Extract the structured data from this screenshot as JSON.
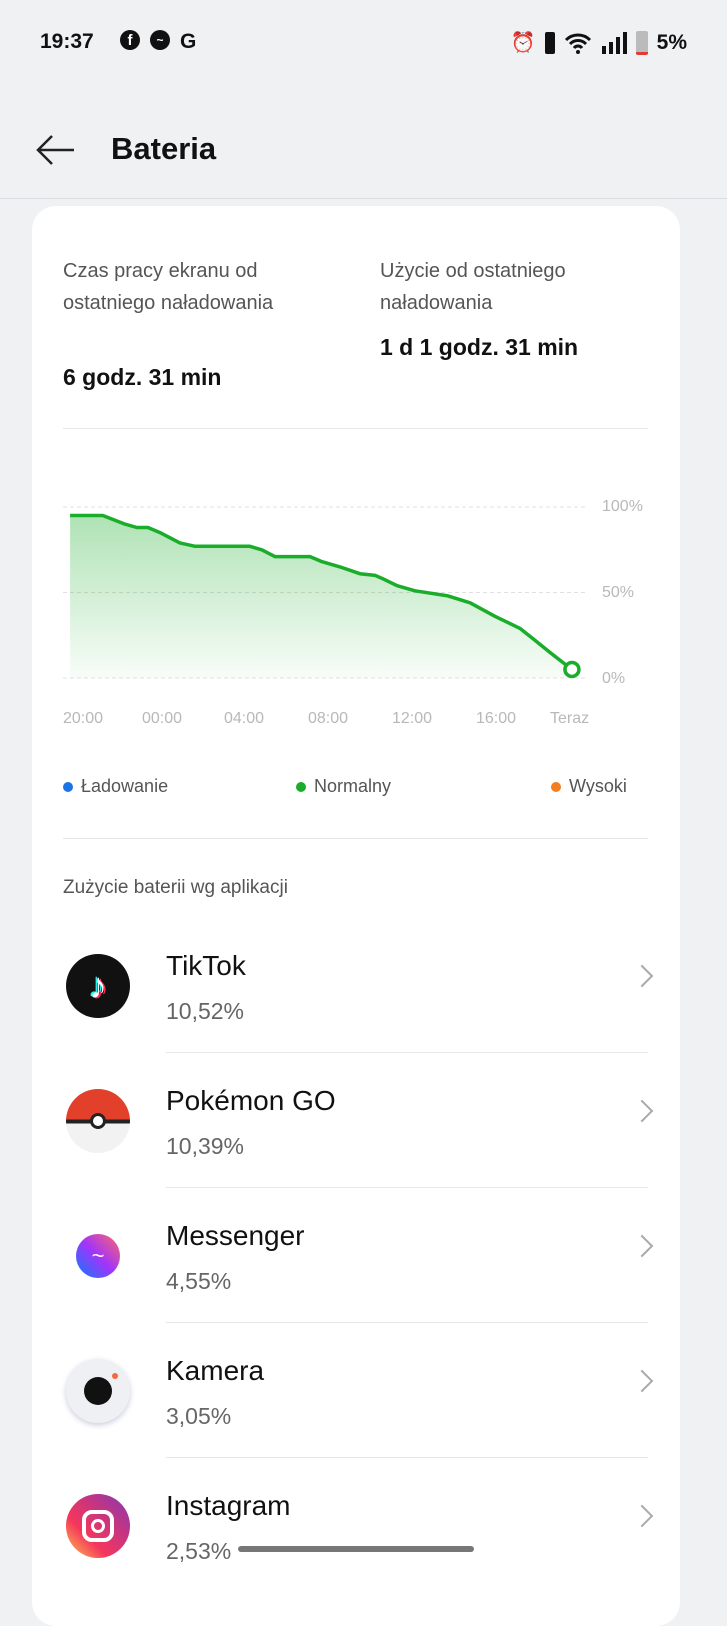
{
  "status_bar": {
    "time": "19:37",
    "battery": "5%",
    "notification_icons": [
      "facebook-icon",
      "messenger-icon",
      "google-icon"
    ],
    "system_icons": [
      "alarm-icon",
      "vibrate-icon",
      "wifi-icon",
      "signal-icon",
      "battery-icon"
    ]
  },
  "header": {
    "title": "Bateria"
  },
  "summary": {
    "screen_time_label": "Czas pracy ekranu od ostatniego naładowania",
    "screen_time_value": "6 godz. 31 min",
    "usage_label": "Użycie od ostatniego naładowania",
    "usage_value": "1 d 1 godz. 31 min"
  },
  "chart_data": {
    "type": "area",
    "x_ticks": [
      "20:00",
      "00:00",
      "04:00",
      "08:00",
      "12:00",
      "16:00",
      "Teraz"
    ],
    "y_ticks": [
      "100%",
      "50%",
      "0%"
    ],
    "ylim": [
      0,
      100
    ],
    "grid": true,
    "color": "#1aad2a",
    "points": [
      [
        "19:11",
        95
      ],
      [
        "20:46",
        95
      ],
      [
        "21:50",
        90
      ],
      [
        "22:25",
        88
      ],
      [
        "22:57",
        88
      ],
      [
        "23:32",
        85
      ],
      [
        "00:30",
        79
      ],
      [
        "01:14",
        77
      ],
      [
        "03:53",
        77
      ],
      [
        "04:28",
        75
      ],
      [
        "05:06",
        71
      ],
      [
        "06:48",
        71
      ],
      [
        "07:23",
        68
      ],
      [
        "08:15",
        65
      ],
      [
        "09:13",
        61
      ],
      [
        "09:57",
        60
      ],
      [
        "10:20",
        58
      ],
      [
        "11:01",
        54
      ],
      [
        "11:53",
        51
      ],
      [
        "13:29",
        48
      ],
      [
        "14:33",
        44
      ],
      [
        "15:46",
        36
      ],
      [
        "16:58",
        29
      ],
      [
        "17:42",
        22
      ],
      [
        "18:25",
        15
      ],
      [
        "19:29",
        5
      ]
    ],
    "legend": [
      {
        "label": "Ładowanie",
        "color": "#1a73e8"
      },
      {
        "label": "Normalny",
        "color": "#1aad2a"
      },
      {
        "label": "Wysoki",
        "color": "#f57c1f"
      }
    ]
  },
  "apps_section": {
    "title": "Zużycie baterii wg aplikacji",
    "apps": [
      {
        "name": "TikTok",
        "pct": "10,52%",
        "icon": "tiktok-icon"
      },
      {
        "name": "Pokémon GO",
        "pct": "10,39%",
        "icon": "pokemon-go-icon"
      },
      {
        "name": "Messenger",
        "pct": "4,55%",
        "icon": "messenger-icon"
      },
      {
        "name": "Kamera",
        "pct": "3,05%",
        "icon": "camera-icon"
      },
      {
        "name": "Instagram",
        "pct": "2,53%",
        "icon": "instagram-icon"
      }
    ]
  }
}
